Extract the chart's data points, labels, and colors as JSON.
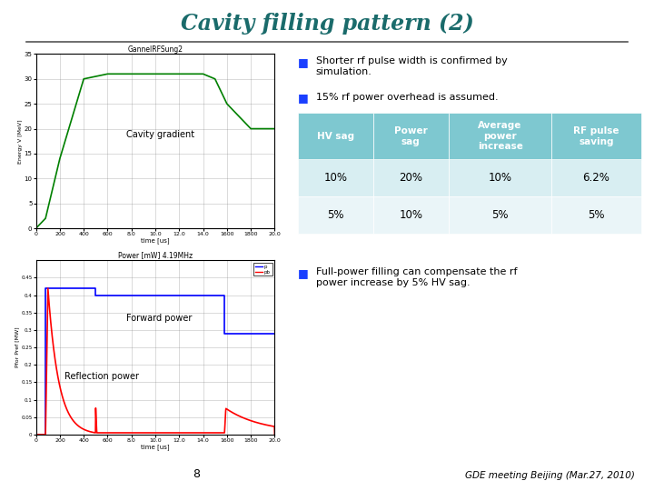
{
  "title": "Cavity filling pattern (2)",
  "title_color": "#1a6b6b",
  "background_color": "#ffffff",
  "bullet_color": "#1a3fff",
  "table_header_bg": "#7ec8d0",
  "table_row1_bg": "#d8eef2",
  "table_row2_bg": "#eaf5f8",
  "table_headers": [
    "HV sag",
    "Power\nsag",
    "Average\npower\nincrease",
    "RF pulse\nsaving"
  ],
  "table_row1": [
    "10%",
    "20%",
    "10%",
    "6.2%"
  ],
  "table_row2": [
    "5%",
    "10%",
    "5%",
    "5%"
  ],
  "footer": "GDE meeting Beijing (Mar.27, 2010)",
  "page_number": "8",
  "top_plot_title": "GannelRFSung2",
  "top_plot_ylabel": "Energy V [MeV]",
  "top_plot_xlabel": "time [us]",
  "bottom_plot_title": "Power [mW] 4.19MHz",
  "bottom_plot_ylabel": "Pfor Pref [MW]",
  "bottom_plot_xlabel": "time [us]"
}
